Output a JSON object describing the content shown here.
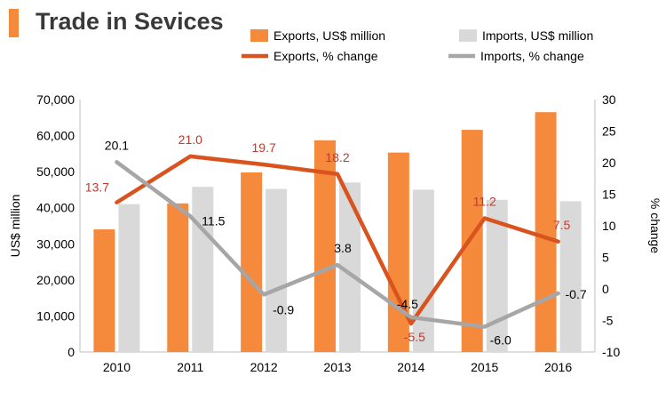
{
  "colors": {
    "accent": "#f5893c",
    "exports_bar": "#f5893c",
    "imports_bar": "#d9d9d9",
    "exports_line": "#d9531e",
    "imports_line": "#a6a6a6",
    "exports_label": "#c0392b",
    "imports_label": "#000000",
    "axis": "#bfbfbf",
    "text": "#000000"
  },
  "chart_data": {
    "type": "bar+line",
    "title": "Trade in Sevices",
    "categories": [
      "2010",
      "2011",
      "2012",
      "2013",
      "2014",
      "2015",
      "2016"
    ],
    "ylabel": "US$ million",
    "y2label": "% change",
    "ylim": [
      0,
      70000
    ],
    "y2lim": [
      -10,
      30
    ],
    "yticks": [
      "0",
      "10,000",
      "20,000",
      "30,000",
      "40,000",
      "50,000",
      "60,000",
      "70,000"
    ],
    "y2ticks": [
      "-10",
      "-5",
      "0",
      "5",
      "10",
      "15",
      "20",
      "25",
      "30"
    ],
    "grid": false,
    "legend_position": "top",
    "bar_series": [
      {
        "name": "Exports, US$ million",
        "values": [
          34000,
          41200,
          49800,
          58700,
          55300,
          61600,
          66500
        ]
      },
      {
        "name": "Imports, US$ million",
        "values": [
          41000,
          45800,
          45200,
          47000,
          45000,
          42200,
          41800
        ]
      }
    ],
    "line_series": [
      {
        "name": "Exports, % change",
        "values": [
          13.7,
          21.0,
          19.7,
          18.2,
          -5.5,
          11.2,
          7.5
        ],
        "labels": [
          "13.7",
          "21.0",
          "19.7",
          "18.2",
          "-5.5",
          "11.2",
          "7.5"
        ]
      },
      {
        "name": "Imports, % change",
        "values": [
          20.1,
          11.5,
          -0.9,
          3.8,
          -4.5,
          -6.0,
          -0.7
        ],
        "labels": [
          "20.1",
          "11.5",
          "-0.9",
          "3.8",
          "-4.5",
          "-6.0",
          "-0.7"
        ]
      }
    ]
  }
}
